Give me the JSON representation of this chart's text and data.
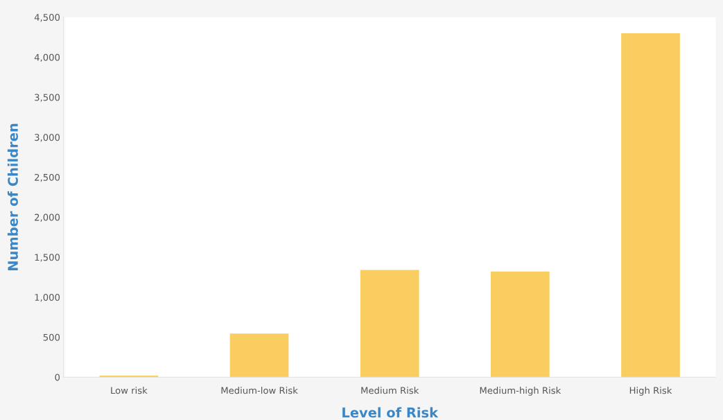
{
  "chart_data": {
    "type": "bar",
    "xlabel": "Level of Risk",
    "ylabel": "Number of Children",
    "categories": [
      "Low risk",
      "Medium-low Risk",
      "Medium Risk",
      "Medium-high Risk",
      "High Risk"
    ],
    "values": [
      20,
      545,
      1340,
      1320,
      4300
    ],
    "color": "#f9cd5f",
    "ylim": [
      0,
      4500
    ],
    "yticks": [
      0,
      500,
      {
        "value": 1000,
        "label": "1,000"
      },
      {
        "value": 1500,
        "label": "1,500"
      },
      {
        "value": 2000,
        "label": "2,000"
      },
      {
        "value": 2500,
        "label": "2,500"
      },
      {
        "value": 3000,
        "label": "3,000"
      },
      {
        "value": 3500,
        "label": "3,500"
      },
      {
        "value": 4000,
        "label": "4,000"
      },
      {
        "value": 4500,
        "label": "4,500"
      }
    ],
    "grid": false,
    "legend": false
  }
}
